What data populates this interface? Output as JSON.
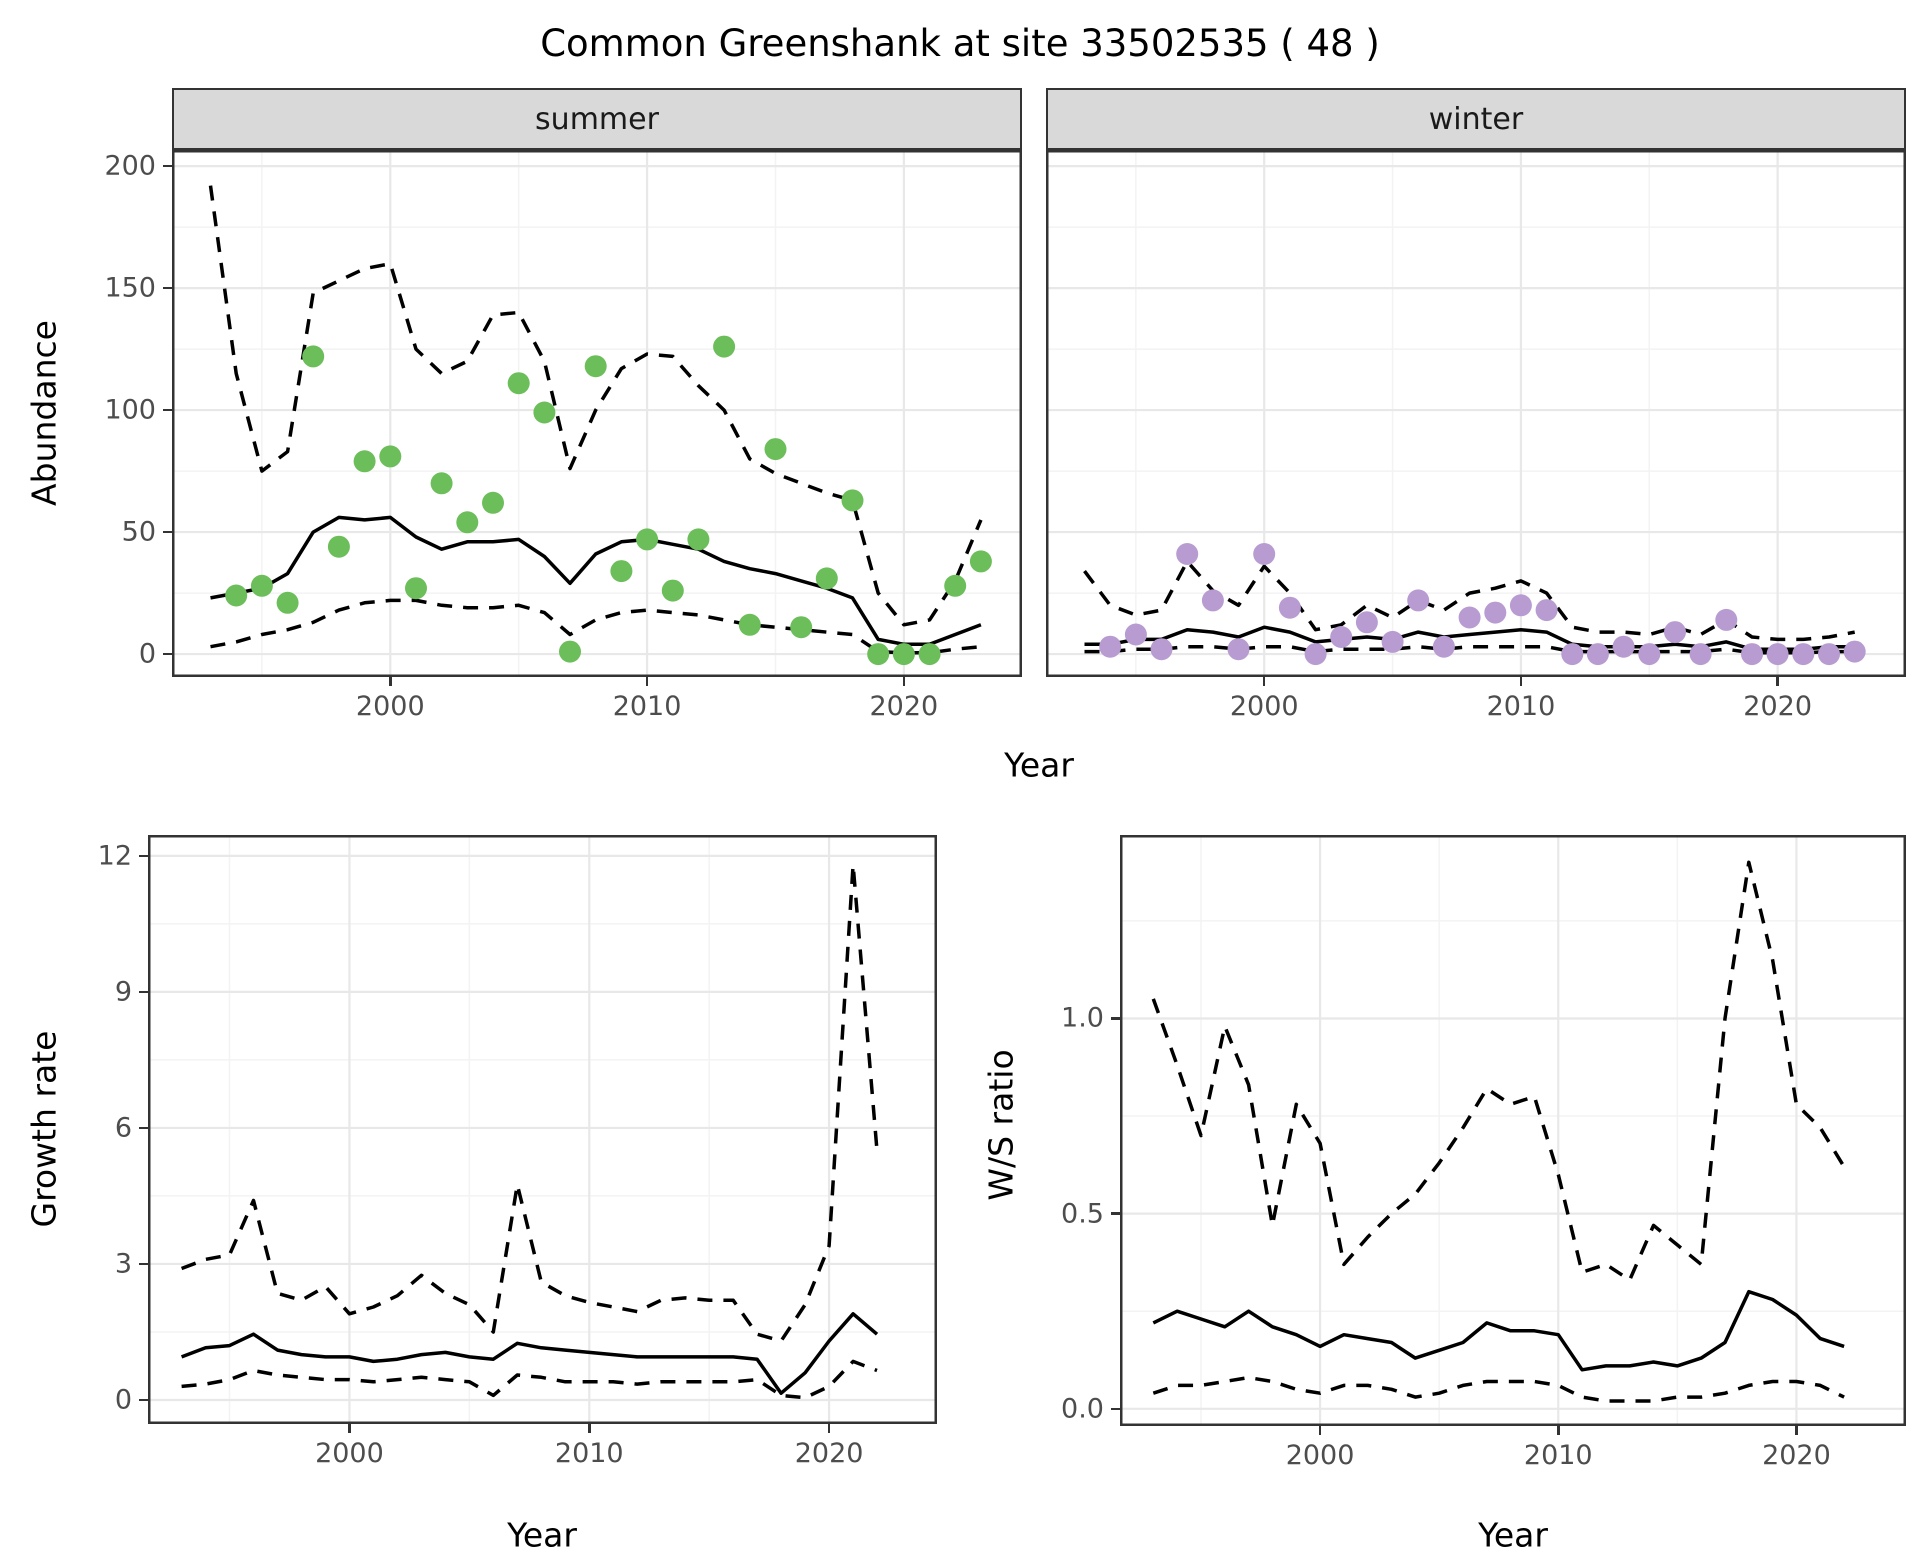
{
  "title": "Common Greenshank at site 33502535 ( 48 )",
  "axes": {
    "abundance_label": "Abundance",
    "growth_label": "Growth rate",
    "ws_label": "W/S ratio",
    "year_label": "Year"
  },
  "colors": {
    "summer_point": "#6cbe5a",
    "winter_point": "#b89cd1",
    "line": "#000000",
    "strip_bg": "#d9d9d9",
    "panel_border": "#333333",
    "grid_major": "#e8e8e8",
    "grid_minor": "#f3f3f3",
    "tick_label": "#4d4d4d"
  },
  "chart_data": [
    {
      "id": "abundance-summer",
      "type": "line",
      "facet_label": "summer",
      "xlabel": "Year",
      "ylabel": "Abundance",
      "xlim": [
        1991.5,
        2024.6
      ],
      "ylim": [
        -9.4,
        206.6
      ],
      "xticks": [
        2000,
        2010,
        2020
      ],
      "xticks_minor": [
        1995,
        2005,
        2015
      ],
      "yticks": [
        0,
        50,
        100,
        150,
        200
      ],
      "ytick_labels": [
        "0",
        "50",
        "100",
        "150",
        "200"
      ],
      "yticks_minor": [
        25,
        75,
        125,
        175
      ],
      "x": [
        1993,
        1994,
        1995,
        1996,
        1997,
        1998,
        1999,
        2000,
        2001,
        2002,
        2003,
        2004,
        2005,
        2006,
        2007,
        2008,
        2009,
        2010,
        2011,
        2012,
        2013,
        2014,
        2015,
        2016,
        2017,
        2018,
        2019,
        2020,
        2021,
        2022,
        2023
      ],
      "series": [
        {
          "name": "median",
          "style": "solid",
          "values": [
            23,
            25,
            27,
            33,
            50,
            56,
            55,
            56,
            48,
            43,
            46,
            46,
            47,
            40,
            29,
            41,
            46,
            47,
            45,
            43,
            38,
            35,
            33,
            30,
            27,
            23,
            6,
            4,
            4,
            8,
            12
          ]
        },
        {
          "name": "lower-ci",
          "style": "dashed",
          "values": [
            3,
            5,
            8,
            10,
            13,
            18,
            21,
            22,
            22,
            20,
            19,
            19,
            20,
            17,
            8,
            14,
            17,
            18,
            17,
            16,
            14,
            12,
            11,
            10,
            9,
            8,
            1,
            0.5,
            0.5,
            2,
            3
          ]
        },
        {
          "name": "upper-ci",
          "style": "dashed",
          "values": [
            192,
            115,
            75,
            83,
            148,
            153,
            158,
            160,
            125,
            115,
            120,
            139,
            140,
            120,
            76,
            100,
            117,
            123,
            122,
            110,
            100,
            80,
            74,
            70,
            66,
            63,
            25,
            12,
            14,
            30,
            55
          ]
        }
      ],
      "points": {
        "x": [
          1994,
          1995,
          1996,
          1997,
          1998,
          1999,
          2000,
          2001,
          2002,
          2003,
          2004,
          2005,
          2006,
          2007,
          2008,
          2009,
          2010,
          2011,
          2012,
          2013,
          2014,
          2015,
          2016,
          2017,
          2018,
          2019,
          2020,
          2021,
          2022,
          2023
        ],
        "y": [
          24,
          28,
          21,
          122,
          44,
          79,
          81,
          27,
          70,
          54,
          62,
          111,
          99,
          1,
          118,
          34,
          47,
          26,
          47,
          126,
          12,
          84,
          11,
          31,
          63,
          0,
          0,
          0,
          28,
          38
        ]
      }
    },
    {
      "id": "abundance-winter",
      "type": "line",
      "facet_label": "winter",
      "xlabel": "Year",
      "ylabel": "Abundance",
      "xlim": [
        1991.5,
        2025.0
      ],
      "ylim": [
        -9.4,
        206.6
      ],
      "xticks": [
        2000,
        2010,
        2020
      ],
      "xticks_minor": [
        1995,
        2005,
        2015
      ],
      "yticks": [
        0,
        50,
        100,
        150,
        200
      ],
      "ytick_labels": [
        "0",
        "50",
        "100",
        "150",
        "200"
      ],
      "yticks_minor": [
        25,
        75,
        125,
        175
      ],
      "x": [
        1993,
        1994,
        1995,
        1996,
        1997,
        1998,
        1999,
        2000,
        2001,
        2002,
        2003,
        2004,
        2005,
        2006,
        2007,
        2008,
        2009,
        2010,
        2011,
        2012,
        2013,
        2014,
        2015,
        2016,
        2017,
        2018,
        2019,
        2020,
        2021,
        2022,
        2023
      ],
      "series": [
        {
          "name": "median",
          "style": "solid",
          "values": [
            4,
            4,
            6,
            6,
            10,
            9,
            7,
            11,
            9,
            5,
            6,
            7,
            6,
            9,
            7,
            8,
            9,
            10,
            9,
            4,
            3,
            3,
            3,
            4,
            3,
            5,
            2,
            2,
            2,
            3,
            3
          ]
        },
        {
          "name": "lower-ci",
          "style": "dashed",
          "values": [
            1,
            1,
            2,
            2,
            3,
            3,
            2,
            3,
            3,
            1,
            2,
            2,
            2,
            3,
            2,
            3,
            3,
            3,
            3,
            1,
            1,
            1,
            1,
            1,
            1,
            2,
            0.5,
            0.5,
            0.5,
            1,
            1
          ]
        },
        {
          "name": "upper-ci",
          "style": "dashed",
          "values": [
            34,
            20,
            16,
            18,
            38,
            26,
            20,
            36,
            25,
            10,
            12,
            20,
            15,
            22,
            18,
            25,
            27,
            30,
            25,
            11,
            9,
            9,
            8,
            11,
            8,
            14,
            7,
            6,
            6,
            7,
            9
          ]
        }
      ],
      "points": {
        "x": [
          1994,
          1995,
          1996,
          1997,
          1998,
          1999,
          2000,
          2001,
          2002,
          2003,
          2004,
          2005,
          2006,
          2007,
          2008,
          2009,
          2010,
          2011,
          2012,
          2013,
          2014,
          2015,
          2016,
          2017,
          2018,
          2019,
          2020,
          2021,
          2022,
          2023
        ],
        "y": [
          3,
          8,
          2,
          41,
          22,
          2,
          41,
          19,
          0,
          7,
          13,
          5,
          22,
          3,
          15,
          17,
          20,
          18,
          0,
          0,
          3,
          0,
          9,
          0,
          14,
          0,
          0,
          0,
          0,
          1
        ]
      }
    },
    {
      "id": "growth-rate",
      "type": "line",
      "xlabel": "Year",
      "ylabel": "Growth rate",
      "xlim": [
        1991.6,
        2024.5
      ],
      "ylim": [
        -0.53,
        12.46
      ],
      "xticks": [
        2000,
        2010,
        2020
      ],
      "xticks_minor": [
        1995,
        2005,
        2015
      ],
      "yticks": [
        0,
        3,
        6,
        9,
        12
      ],
      "ytick_labels": [
        "0",
        "3",
        "6",
        "9",
        "12"
      ],
      "yticks_minor": [
        1.5,
        4.5,
        7.5,
        10.5
      ],
      "x": [
        1993,
        1994,
        1995,
        1996,
        1997,
        1998,
        1999,
        2000,
        2001,
        2002,
        2003,
        2004,
        2005,
        2006,
        2007,
        2008,
        2009,
        2010,
        2011,
        2012,
        2013,
        2014,
        2015,
        2016,
        2017,
        2018,
        2019,
        2020,
        2021,
        2022
      ],
      "series": [
        {
          "name": "median",
          "style": "solid",
          "values": [
            0.95,
            1.15,
            1.2,
            1.45,
            1.1,
            1.0,
            0.95,
            0.95,
            0.85,
            0.9,
            1.0,
            1.05,
            0.95,
            0.9,
            1.25,
            1.15,
            1.1,
            1.05,
            1.0,
            0.95,
            0.95,
            0.95,
            0.95,
            0.95,
            0.9,
            0.15,
            0.6,
            1.3,
            1.9,
            1.45
          ]
        },
        {
          "name": "lower-ci",
          "style": "dashed",
          "values": [
            0.3,
            0.35,
            0.45,
            0.65,
            0.55,
            0.5,
            0.45,
            0.45,
            0.4,
            0.45,
            0.5,
            0.45,
            0.4,
            0.1,
            0.55,
            0.5,
            0.4,
            0.4,
            0.4,
            0.35,
            0.4,
            0.4,
            0.4,
            0.4,
            0.45,
            0.1,
            0.05,
            0.3,
            0.85,
            0.65
          ]
        },
        {
          "name": "upper-ci",
          "style": "dashed",
          "values": [
            2.9,
            3.1,
            3.2,
            4.4,
            2.35,
            2.2,
            2.5,
            1.9,
            2.05,
            2.3,
            2.75,
            2.35,
            2.1,
            1.5,
            4.75,
            2.6,
            2.3,
            2.15,
            2.05,
            1.95,
            2.2,
            2.25,
            2.2,
            2.2,
            1.45,
            1.3,
            2.1,
            3.4,
            11.8,
            5.5
          ]
        }
      ]
    },
    {
      "id": "ws-ratio",
      "type": "line",
      "xlabel": "Year",
      "ylabel": "W/S ratio",
      "xlim": [
        1991.6,
        2024.6
      ],
      "ylim": [
        -0.044,
        1.47
      ],
      "xticks": [
        2000,
        2010,
        2020
      ],
      "xticks_minor": [
        1995,
        2005,
        2015
      ],
      "yticks": [
        0,
        0.5,
        1.0
      ],
      "ytick_labels": [
        "0.0",
        "0.5",
        "1.0"
      ],
      "yticks_minor": [
        0.25,
        0.75,
        1.25
      ],
      "x": [
        1993,
        1994,
        1995,
        1996,
        1997,
        1998,
        1999,
        2000,
        2001,
        2002,
        2003,
        2004,
        2005,
        2006,
        2007,
        2008,
        2009,
        2010,
        2011,
        2012,
        2013,
        2014,
        2015,
        2016,
        2017,
        2018,
        2019,
        2020,
        2021,
        2022
      ],
      "series": [
        {
          "name": "median",
          "style": "solid",
          "values": [
            0.22,
            0.25,
            0.23,
            0.21,
            0.25,
            0.21,
            0.19,
            0.16,
            0.19,
            0.18,
            0.17,
            0.13,
            0.15,
            0.17,
            0.22,
            0.2,
            0.2,
            0.19,
            0.1,
            0.11,
            0.11,
            0.12,
            0.11,
            0.13,
            0.17,
            0.3,
            0.28,
            0.24,
            0.18,
            0.16
          ]
        },
        {
          "name": "lower-ci",
          "style": "dashed",
          "values": [
            0.04,
            0.06,
            0.06,
            0.07,
            0.08,
            0.07,
            0.05,
            0.04,
            0.06,
            0.06,
            0.05,
            0.03,
            0.04,
            0.06,
            0.07,
            0.07,
            0.07,
            0.06,
            0.03,
            0.02,
            0.02,
            0.02,
            0.03,
            0.03,
            0.04,
            0.06,
            0.07,
            0.07,
            0.06,
            0.03
          ]
        },
        {
          "name": "upper-ci",
          "style": "dashed",
          "values": [
            1.05,
            0.88,
            0.7,
            0.98,
            0.83,
            0.47,
            0.78,
            0.68,
            0.37,
            0.44,
            0.5,
            0.55,
            0.63,
            0.72,
            0.82,
            0.78,
            0.8,
            0.6,
            0.35,
            0.37,
            0.33,
            0.47,
            0.42,
            0.37,
            1.0,
            1.4,
            1.15,
            0.78,
            0.72,
            0.62
          ]
        }
      ]
    }
  ]
}
